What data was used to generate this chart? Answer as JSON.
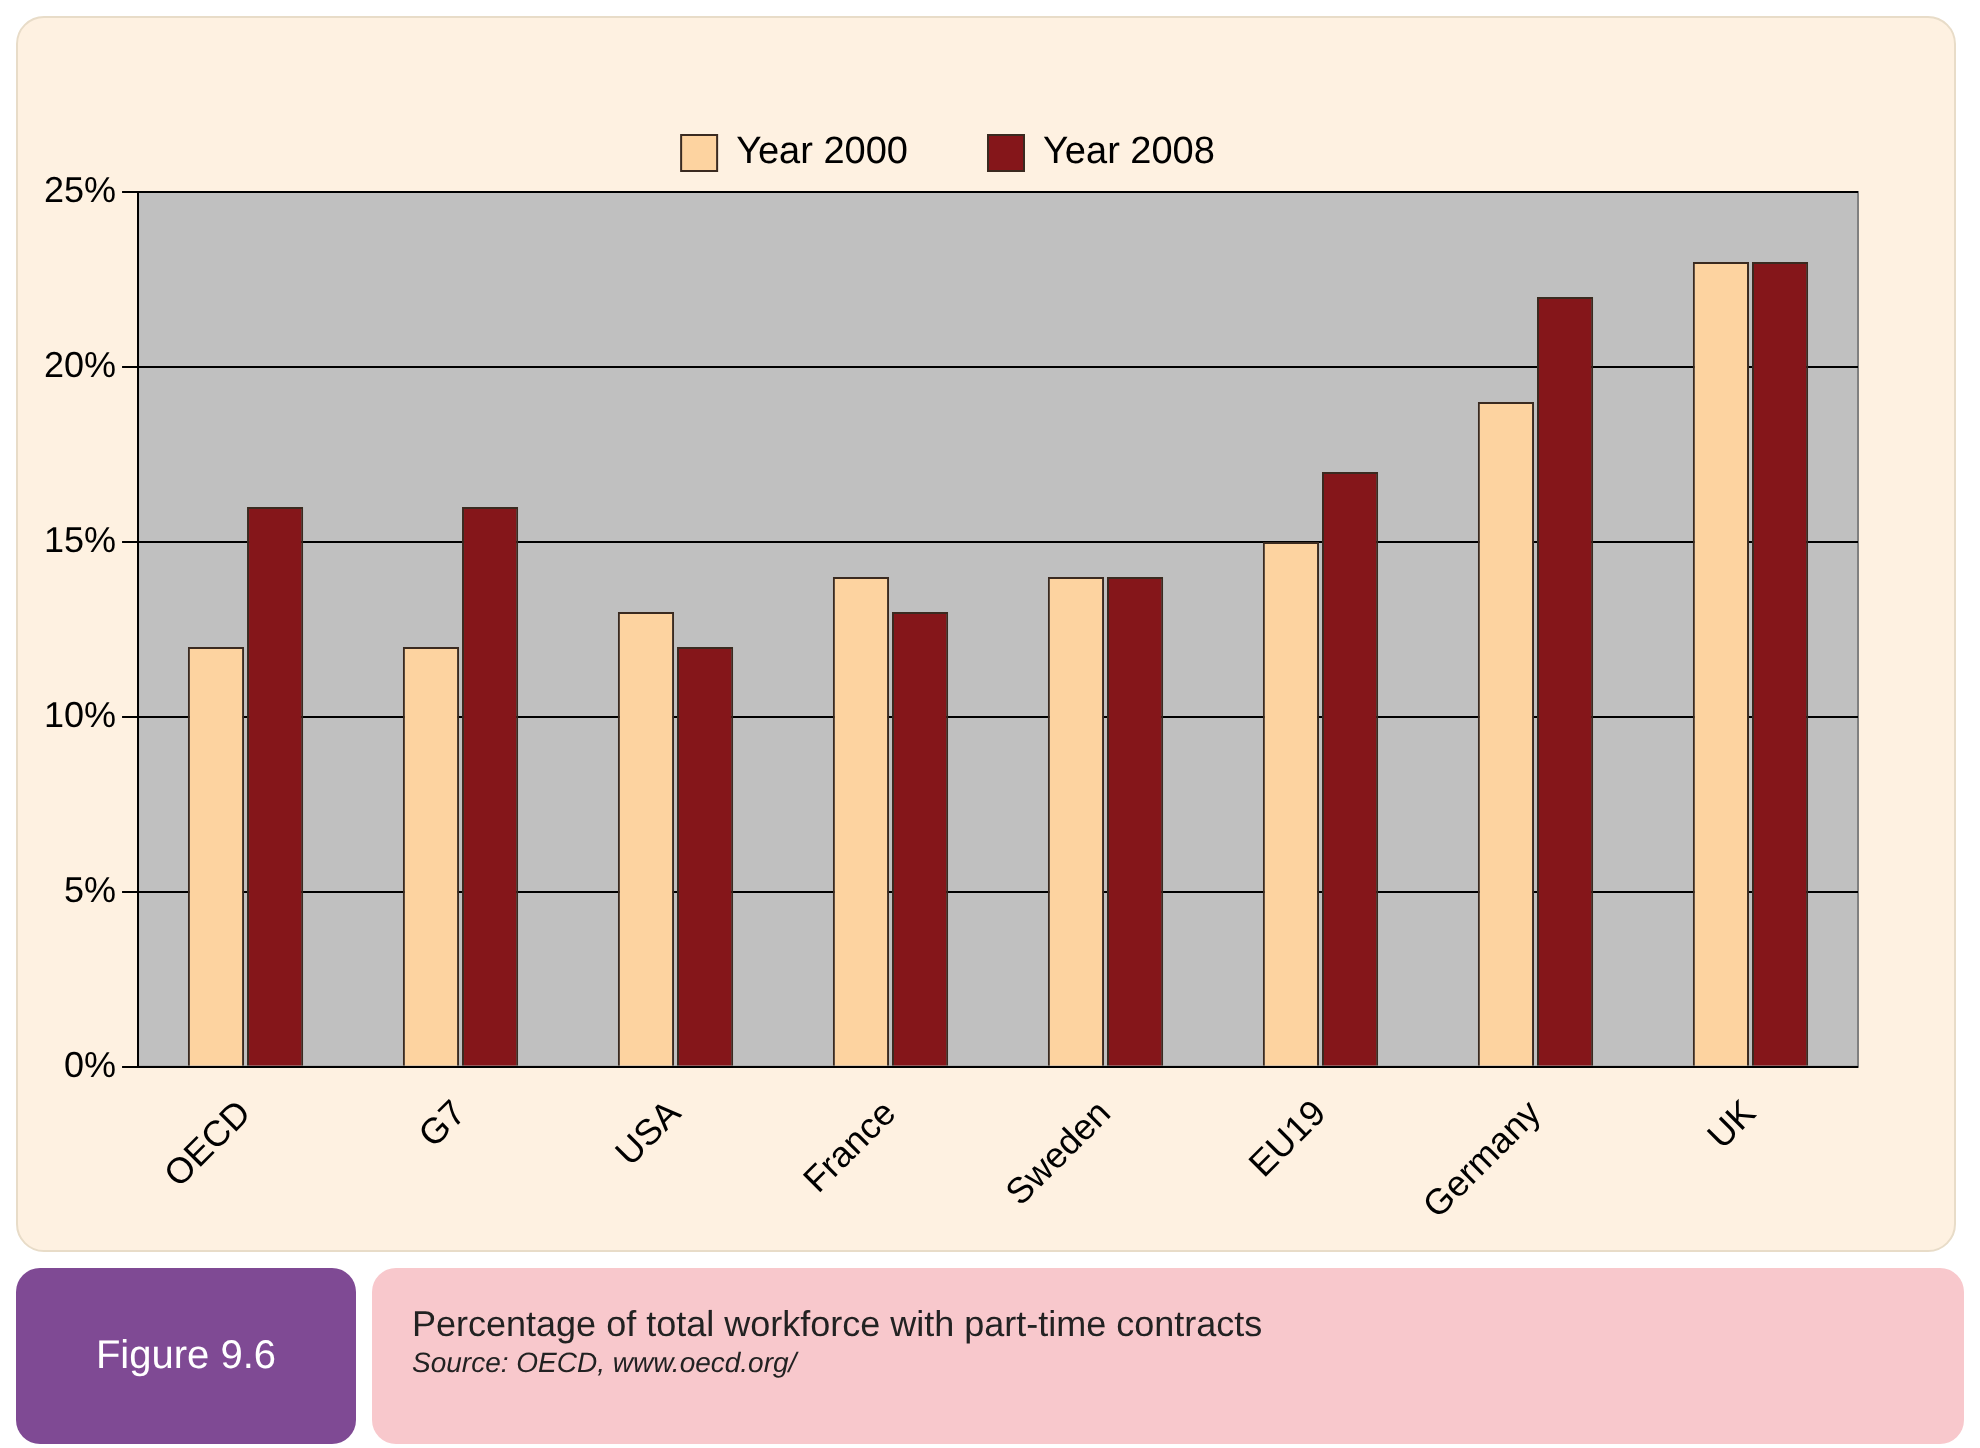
{
  "chart_data": {
    "type": "bar",
    "title": "Percentage of total workforce with part-time contracts",
    "annotations": [
      "Figure 9.6",
      "Source: OECD, www.oecd.org/"
    ],
    "categories": [
      "OECD",
      "G7",
      "USA",
      "France",
      "Sweden",
      "EU19",
      "Germany",
      "UK"
    ],
    "series": [
      {
        "name": "Year 2000",
        "color": "#fdd3a0",
        "values": [
          12,
          12,
          13,
          14,
          14,
          15,
          19,
          23
        ]
      },
      {
        "name": "Year 2008",
        "color": "#85161a",
        "values": [
          16,
          16,
          12,
          13,
          14,
          17,
          22,
          23
        ]
      }
    ],
    "ylim": [
      0,
      25
    ],
    "yticks": [
      {
        "value": 0,
        "label": "0%"
      },
      {
        "value": 5,
        "label": "5%"
      },
      {
        "value": 10,
        "label": "10%"
      },
      {
        "value": 15,
        "label": "15%"
      },
      {
        "value": 20,
        "label": "20%"
      },
      {
        "value": 25,
        "label": "25%"
      }
    ],
    "grid": "y",
    "legend": "top"
  }
}
